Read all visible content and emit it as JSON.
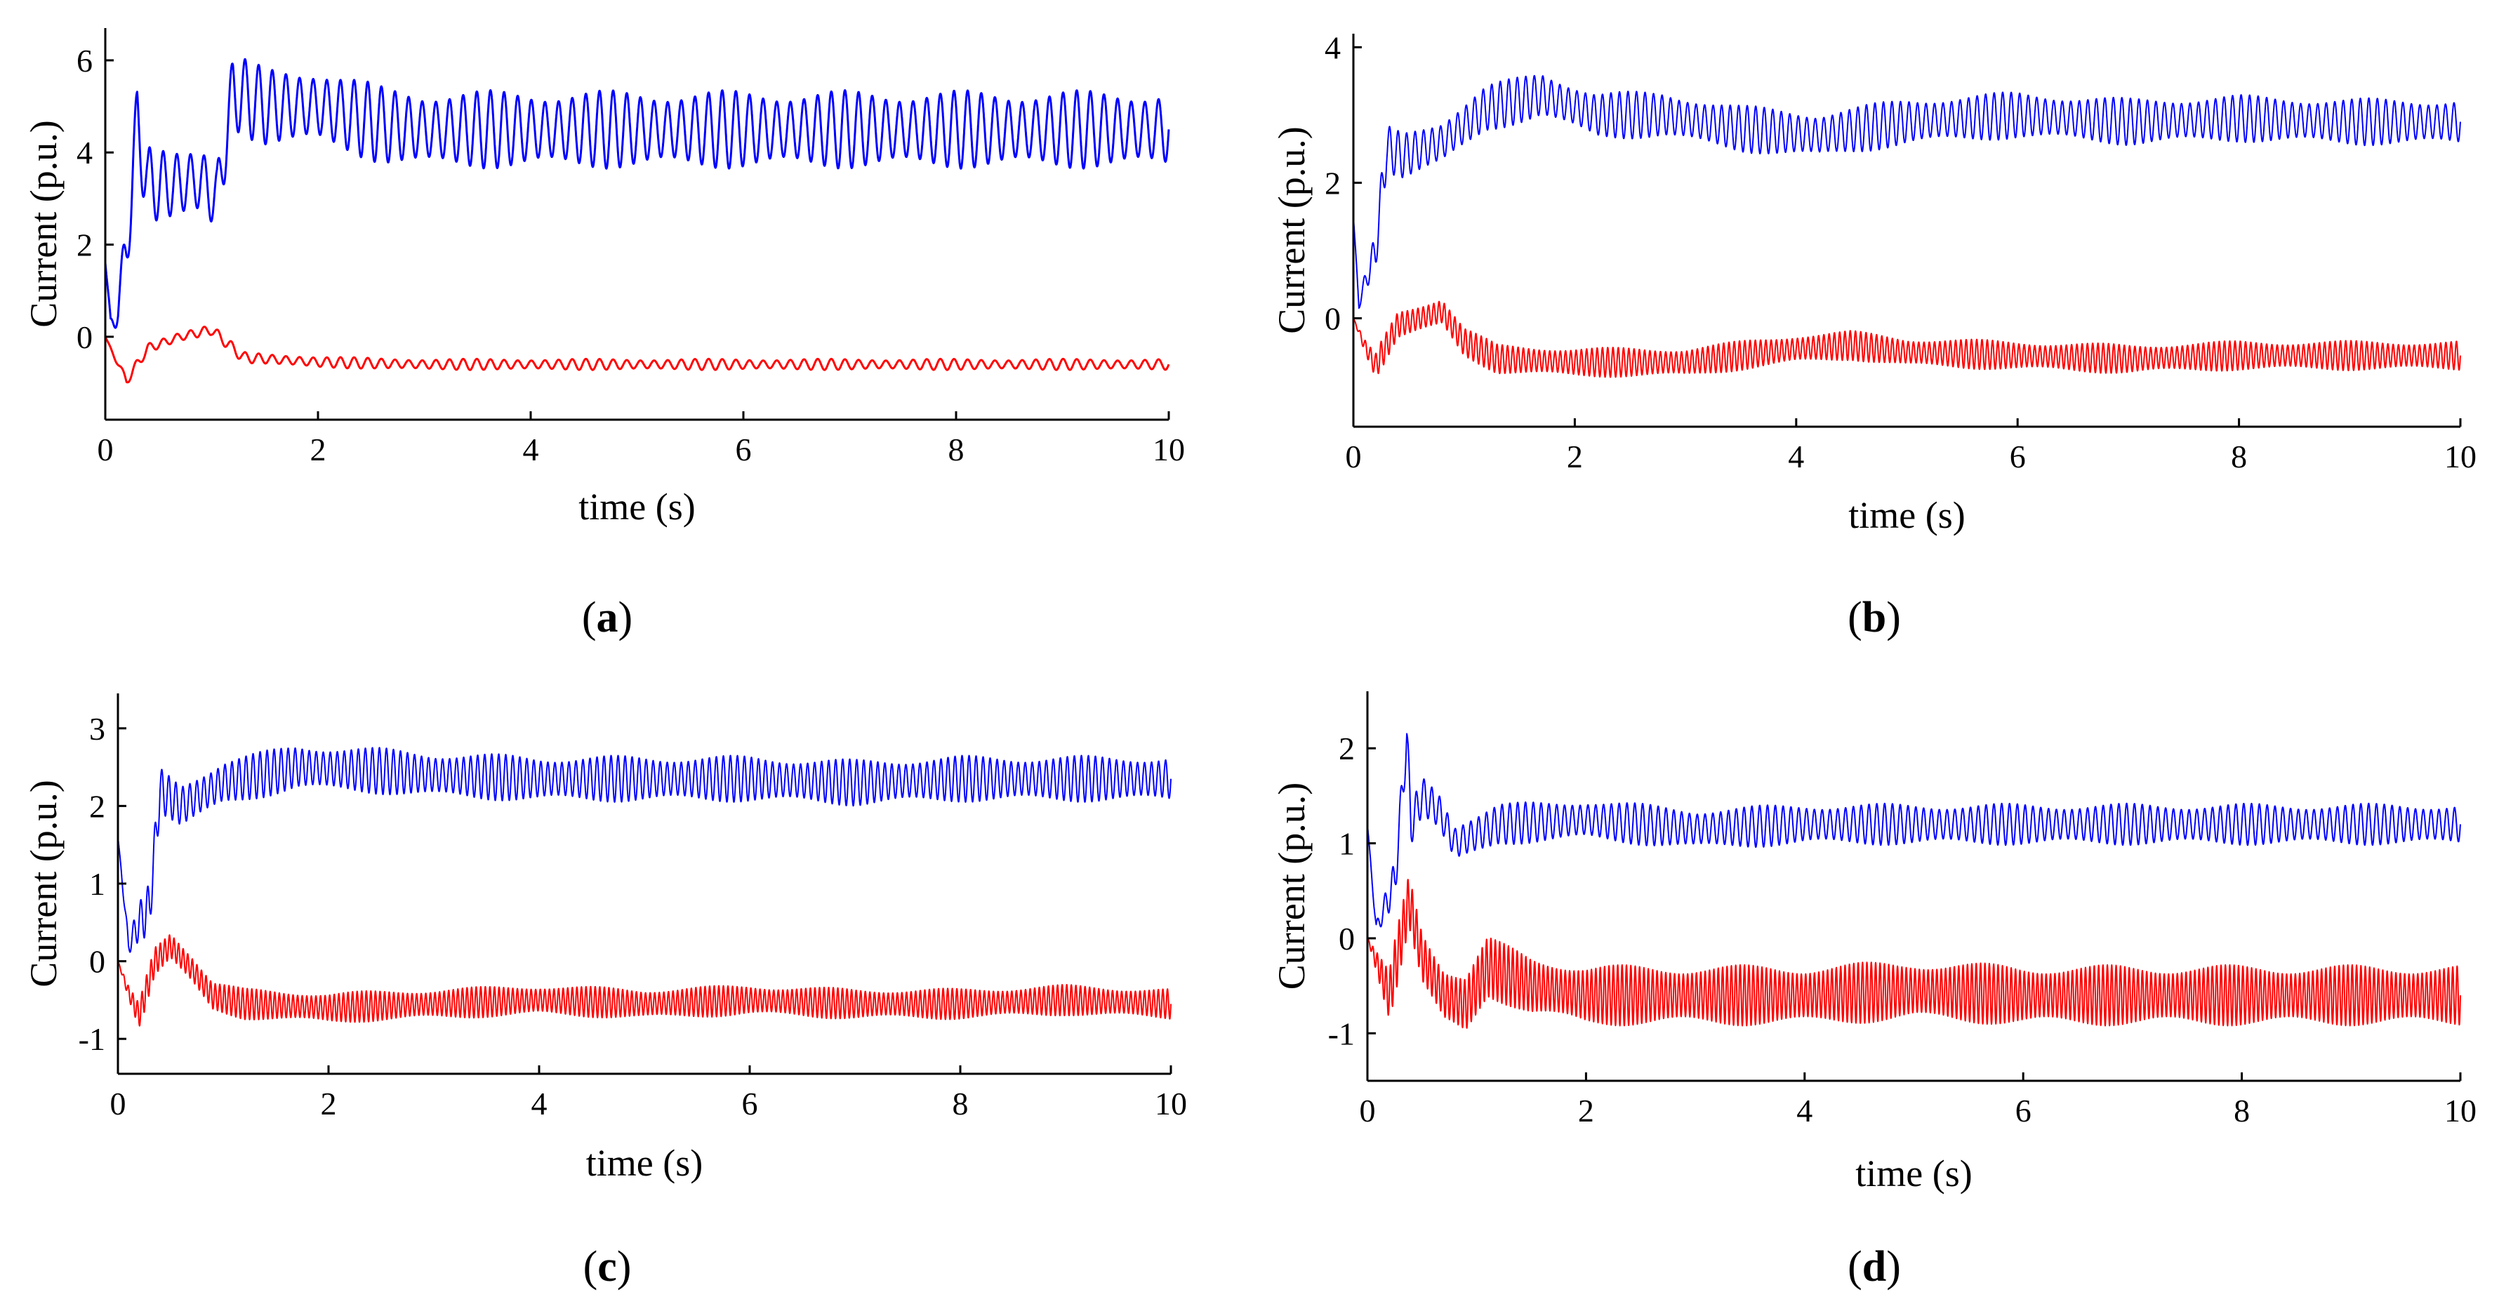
{
  "chart_data": [
    {
      "type": "line",
      "panel": "a",
      "caption": "(a)",
      "caption_letter": "a",
      "xlabel": "time (s)",
      "ylabel": "Current (p.u.)",
      "xlim": [
        0,
        10
      ],
      "ylim": [
        -1.8,
        6.7
      ],
      "xticks": [
        0,
        2,
        4,
        6,
        8,
        10
      ],
      "yticks": [
        0,
        2,
        4,
        6
      ],
      "series": [
        {
          "color": "#0000ff",
          "line_width": 3,
          "oscillation": {
            "amplitude": 0.85,
            "frequency_hz": 7.8
          },
          "envelope": {
            "x": [
              0,
              0.05,
              0.12,
              0.2,
              0.3,
              0.4,
              0.6,
              0.9,
              1.05,
              1.2,
              1.5,
              2,
              2.6,
              3,
              10
            ],
            "y": [
              1.6,
              0.3,
              0.6,
              2.0,
              4.6,
              3.3,
              3.3,
              3.4,
              3.0,
              5.3,
              5.0,
              5.0,
              4.6,
              4.5,
              4.5
            ]
          }
        },
        {
          "color": "#ff0000",
          "line_width": 3,
          "oscillation": {
            "amplitude": 0.12,
            "frequency_hz": 7.8
          },
          "envelope": {
            "x": [
              0,
              0.1,
              0.2,
              0.4,
              0.7,
              1.0,
              1.3,
              2,
              3,
              10
            ],
            "y": [
              0,
              -0.5,
              -0.95,
              -0.25,
              0.0,
              0.15,
              -0.45,
              -0.55,
              -0.6,
              -0.6
            ]
          }
        }
      ]
    },
    {
      "type": "line",
      "panel": "b",
      "caption": "(b)",
      "caption_letter": "b",
      "xlabel": "time (s)",
      "ylabel": "Current (p.u.)",
      "xlim": [
        0,
        10
      ],
      "ylim": [
        -1.6,
        4.2
      ],
      "xticks": [
        0,
        2,
        4,
        6,
        8,
        10
      ],
      "yticks": [
        0,
        2,
        4
      ],
      "series": [
        {
          "color": "#0000ff",
          "line_width": 2,
          "oscillation": {
            "amplitude": 0.35,
            "frequency_hz": 13
          },
          "envelope": {
            "x": [
              0,
              0.05,
              0.1,
              0.2,
              0.3,
              0.45,
              0.8,
              1.2,
              1.7,
              2.2,
              2.8,
              3.5,
              4.2,
              5,
              6,
              7,
              8,
              9,
              10
            ],
            "y": [
              1.5,
              0.2,
              0.5,
              1.0,
              2.5,
              2.4,
              2.6,
              3.1,
              3.3,
              3.0,
              3.0,
              2.8,
              2.7,
              2.9,
              3.0,
              2.9,
              2.95,
              2.9,
              2.9
            ]
          }
        },
        {
          "color": "#ff0000",
          "line_width": 2,
          "oscillation": {
            "amplitude": 0.22,
            "frequency_hz": 21
          },
          "envelope": {
            "x": [
              0,
              0.1,
              0.2,
              0.4,
              0.8,
              1.0,
              1.3,
              2,
              3,
              4,
              4.5,
              5,
              6,
              7,
              8,
              9,
              10
            ],
            "y": [
              0,
              -0.4,
              -0.7,
              -0.1,
              0.1,
              -0.35,
              -0.6,
              -0.65,
              -0.65,
              -0.45,
              -0.4,
              -0.5,
              -0.55,
              -0.6,
              -0.55,
              -0.55,
              -0.55
            ]
          }
        }
      ]
    },
    {
      "type": "line",
      "panel": "c",
      "caption": "(c)",
      "caption_letter": "c",
      "xlabel": "time (s)",
      "ylabel": "Current (p.u.)",
      "xlim": [
        0,
        10
      ],
      "ylim": [
        -1.45,
        3.45
      ],
      "xticks": [
        0,
        2,
        4,
        6,
        8,
        10
      ],
      "yticks": [
        -1,
        0,
        1,
        2,
        3
      ],
      "series": [
        {
          "color": "#0000ff",
          "line_width": 2,
          "oscillation": {
            "amplitude": 0.3,
            "frequency_hz": 15
          },
          "envelope": {
            "x": [
              0,
              0.1,
              0.2,
              0.3,
              0.4,
              0.6,
              1.0,
              1.7,
              2.5,
              3,
              4,
              5,
              6,
              7,
              8,
              9,
              10
            ],
            "y": [
              1.6,
              0.2,
              0.5,
              0.7,
              2.2,
              2.0,
              2.3,
              2.5,
              2.45,
              2.4,
              2.35,
              2.35,
              2.35,
              2.3,
              2.35,
              2.35,
              2.35
            ]
          }
        },
        {
          "color": "#ff0000",
          "line_width": 2,
          "oscillation": {
            "amplitude": 0.2,
            "frequency_hz": 23
          },
          "envelope": {
            "x": [
              0,
              0.1,
              0.2,
              0.35,
              0.5,
              0.7,
              0.9,
              1.2,
              2,
              3,
              4,
              5,
              6,
              7,
              8,
              9,
              10
            ],
            "y": [
              0,
              -0.4,
              -0.7,
              0.0,
              0.2,
              -0.1,
              -0.45,
              -0.55,
              -0.6,
              -0.55,
              -0.5,
              -0.55,
              -0.5,
              -0.55,
              -0.55,
              -0.5,
              -0.55
            ]
          }
        }
      ]
    },
    {
      "type": "line",
      "panel": "d",
      "caption": "(d)",
      "caption_letter": "d",
      "xlabel": "time (s)",
      "ylabel": "Current (p.u.)",
      "xlim": [
        0,
        10
      ],
      "ylim": [
        -1.5,
        2.6
      ],
      "xticks": [
        0,
        2,
        4,
        6,
        8,
        10
      ],
      "yticks": [
        -1,
        0,
        1,
        2
      ],
      "series": [
        {
          "color": "#0000ff",
          "line_width": 2,
          "oscillation": {
            "amplitude": 0.22,
            "frequency_hz": 14
          },
          "envelope": {
            "x": [
              0,
              0.08,
              0.15,
              0.25,
              0.36,
              0.4,
              0.5,
              0.65,
              0.8,
              1.2,
              2,
              3,
              4,
              5,
              6,
              7,
              8,
              9,
              10
            ],
            "y": [
              1.2,
              0.1,
              0.3,
              0.6,
              2.1,
              1.2,
              1.5,
              1.35,
              1.0,
              1.2,
              1.25,
              1.15,
              1.2,
              1.2,
              1.2,
              1.2,
              1.2,
              1.2,
              1.2
            ]
          }
        },
        {
          "color": "#ff0000",
          "line_width": 2,
          "oscillation": {
            "amplitude": 0.32,
            "frequency_hz": 25
          },
          "envelope": {
            "x": [
              0,
              0.1,
              0.2,
              0.38,
              0.5,
              0.7,
              0.9,
              1.1,
              1.5,
              2,
              3,
              4,
              5,
              6,
              7,
              8,
              9,
              10
            ],
            "y": [
              0,
              -0.3,
              -0.6,
              0.4,
              -0.2,
              -0.6,
              -0.7,
              -0.3,
              -0.5,
              -0.6,
              -0.6,
              -0.6,
              -0.55,
              -0.6,
              -0.6,
              -0.6,
              -0.6,
              -0.6
            ]
          }
        }
      ]
    }
  ]
}
